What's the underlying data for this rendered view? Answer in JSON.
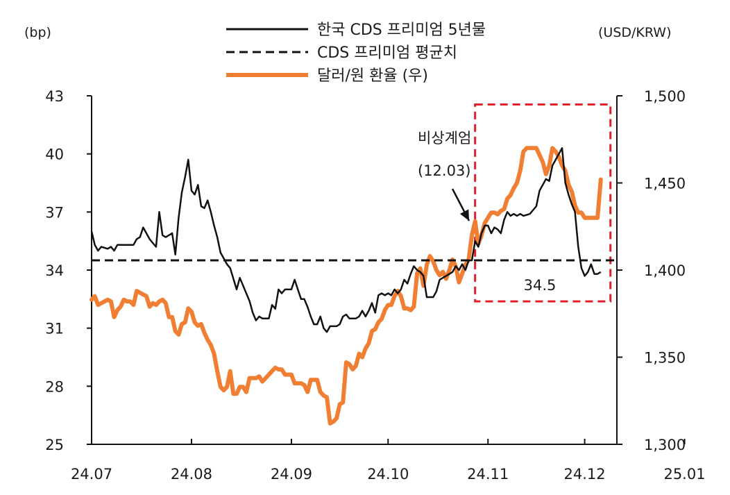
{
  "chart_data": {
    "type": "line",
    "y_left_unit": "(bp)",
    "y_right_unit": "(USD/KRW)",
    "y_left_range": [
      25,
      43
    ],
    "y_left_ticks": [
      "43",
      "40",
      "37",
      "34",
      "31",
      "28",
      "25"
    ],
    "y_right_range": [
      1300,
      1500
    ],
    "y_right_ticks": [
      "1,500",
      "1,450",
      "1,400",
      "1,350",
      "1,300"
    ],
    "x_ticks": [
      "24.07",
      "24.08",
      "24.09",
      "24.10",
      "24.11",
      "24.12",
      "25.01"
    ],
    "grid": false,
    "legend_position": "top-center",
    "series": [
      {
        "name": "한국 CDS 프리미엄 5년물",
        "axis": "left",
        "color": "#111111",
        "style": "solid",
        "points": [
          [
            0,
            36.0
          ],
          [
            1,
            35.3
          ],
          [
            2,
            35.0
          ],
          [
            3,
            35.2
          ],
          [
            5,
            35.1
          ],
          [
            6,
            35.2
          ],
          [
            7,
            35.0
          ],
          [
            8,
            35.3
          ],
          [
            10,
            35.3
          ],
          [
            12,
            35.3
          ],
          [
            13,
            35.3
          ],
          [
            14,
            35.6
          ],
          [
            15,
            35.7
          ],
          [
            16,
            36.2
          ],
          [
            17,
            35.9
          ],
          [
            18,
            35.6
          ],
          [
            19,
            35.4
          ],
          [
            20,
            35.2
          ],
          [
            21,
            37.0
          ],
          [
            22,
            35.8
          ],
          [
            23,
            35.7
          ],
          [
            24,
            35.8
          ],
          [
            25,
            35.9
          ],
          [
            26,
            34.8
          ],
          [
            27,
            36.7
          ],
          [
            28,
            38.0
          ],
          [
            29,
            38.8
          ],
          [
            30,
            39.7
          ],
          [
            31,
            38.1
          ],
          [
            32,
            37.9
          ],
          [
            33,
            38.4
          ],
          [
            34,
            37.3
          ],
          [
            35,
            37.2
          ],
          [
            36,
            37.6
          ],
          [
            37,
            37.0
          ],
          [
            38,
            36.3
          ],
          [
            39,
            35.7
          ],
          [
            40,
            34.9
          ],
          [
            42,
            34.3
          ],
          [
            43,
            34.1
          ],
          [
            45,
            33.0
          ],
          [
            46,
            33.6
          ],
          [
            47,
            33.2
          ],
          [
            48,
            32.8
          ],
          [
            49,
            32.4
          ],
          [
            50,
            31.8
          ],
          [
            51,
            31.4
          ],
          [
            52,
            31.6
          ],
          [
            53,
            31.5
          ],
          [
            55,
            31.5
          ],
          [
            56,
            32.2
          ],
          [
            57,
            32.0
          ],
          [
            58,
            33.0
          ],
          [
            59,
            32.8
          ],
          [
            60,
            33.0
          ],
          [
            62,
            33.0
          ],
          [
            63,
            33.5
          ],
          [
            64,
            33.0
          ],
          [
            65,
            32.5
          ],
          [
            66,
            32.5
          ],
          [
            67,
            32.1
          ],
          [
            68,
            31.6
          ],
          [
            69,
            31.2
          ],
          [
            70,
            31.2
          ],
          [
            71,
            31.6
          ],
          [
            72,
            31.0
          ],
          [
            73,
            30.8
          ],
          [
            74,
            31.1
          ],
          [
            76,
            31.1
          ],
          [
            77,
            31.2
          ],
          [
            78,
            31.6
          ],
          [
            79,
            31.7
          ],
          [
            80,
            31.5
          ],
          [
            82,
            31.5
          ],
          [
            83,
            31.6
          ],
          [
            84,
            31.9
          ],
          [
            85,
            31.6
          ],
          [
            86,
            31.9
          ],
          [
            87,
            32.3
          ],
          [
            88,
            31.8
          ],
          [
            89,
            32.7
          ],
          [
            90,
            32.8
          ],
          [
            91,
            32.7
          ],
          [
            92,
            32.8
          ],
          [
            93,
            32.7
          ],
          [
            94,
            33.0
          ],
          [
            95,
            32.8
          ],
          [
            96,
            33.0
          ],
          [
            97,
            33.5
          ],
          [
            98,
            33.3
          ],
          [
            99,
            33.8
          ],
          [
            100,
            34.2
          ],
          [
            101,
            34.0
          ],
          [
            102,
            33.9
          ],
          [
            103,
            33.7
          ],
          [
            104,
            32.6
          ],
          [
            106,
            32.6
          ],
          [
            107,
            32.9
          ],
          [
            108,
            33.5
          ],
          [
            109,
            33.6
          ],
          [
            110,
            33.7
          ],
          [
            112,
            33.9
          ],
          [
            113,
            34.2
          ],
          [
            114,
            34.0
          ],
          [
            115,
            34.3
          ],
          [
            116,
            34.0
          ],
          [
            117,
            34.5
          ],
          [
            118,
            34.5
          ],
          [
            119,
            35.5
          ],
          [
            120,
            35.2
          ],
          [
            121,
            35.9
          ],
          [
            122,
            36.3
          ],
          [
            123,
            36.3
          ],
          [
            124,
            35.9
          ],
          [
            125,
            36.2
          ],
          [
            126,
            36.1
          ],
          [
            127,
            35.9
          ],
          [
            128,
            36.6
          ],
          [
            129,
            37.0
          ],
          [
            130,
            36.8
          ],
          [
            131,
            36.9
          ],
          [
            132,
            36.8
          ],
          [
            133,
            36.9
          ],
          [
            134,
            36.8
          ],
          [
            136,
            36.9
          ],
          [
            137,
            37.1
          ],
          [
            138,
            37.3
          ],
          [
            139,
            38.1
          ],
          [
            140,
            38.4
          ],
          [
            141,
            38.7
          ],
          [
            142,
            38.6
          ],
          [
            143,
            39.4
          ],
          [
            144,
            39.7
          ],
          [
            145,
            40.0
          ],
          [
            146,
            40.3
          ],
          [
            147,
            38.5
          ],
          [
            148,
            37.9
          ],
          [
            149,
            37.4
          ],
          [
            150,
            37.0
          ],
          [
            151,
            35.2
          ],
          [
            152,
            34.1
          ],
          [
            153,
            33.7
          ],
          [
            154,
            33.9
          ],
          [
            155,
            34.3
          ],
          [
            156,
            33.8
          ],
          [
            157,
            33.8
          ],
          [
            158,
            33.9
          ]
        ]
      },
      {
        "name": "CDS 프리미엄 평균치",
        "axis": "left",
        "color": "#111111",
        "style": "dashed",
        "value": 34.5,
        "label": "34.5"
      },
      {
        "name": "달러/원 환율 (우)",
        "axis": "right",
        "color": "#f07f34",
        "style": "solid",
        "points": [
          [
            0,
            1383
          ],
          [
            1,
            1385
          ],
          [
            2,
            1380
          ],
          [
            3,
            1381
          ],
          [
            4,
            1382
          ],
          [
            5,
            1383
          ],
          [
            6,
            1382
          ],
          [
            7,
            1373
          ],
          [
            8,
            1377
          ],
          [
            9,
            1379
          ],
          [
            10,
            1383
          ],
          [
            11,
            1382
          ],
          [
            12,
            1382
          ],
          [
            13,
            1380
          ],
          [
            14,
            1388
          ],
          [
            15,
            1387
          ],
          [
            16,
            1386
          ],
          [
            17,
            1385
          ],
          [
            18,
            1379
          ],
          [
            19,
            1381
          ],
          [
            20,
            1380
          ],
          [
            21,
            1382
          ],
          [
            22,
            1383
          ],
          [
            23,
            1381
          ],
          [
            24,
            1373
          ],
          [
            25,
            1373
          ],
          [
            26,
            1365
          ],
          [
            27,
            1363
          ],
          [
            28,
            1369
          ],
          [
            29,
            1370
          ],
          [
            30,
            1378
          ],
          [
            31,
            1376
          ],
          [
            32,
            1370
          ],
          [
            33,
            1368
          ],
          [
            34,
            1369
          ],
          [
            35,
            1364
          ],
          [
            36,
            1360
          ],
          [
            37,
            1357
          ],
          [
            38,
            1352
          ],
          [
            39,
            1342
          ],
          [
            40,
            1333
          ],
          [
            41,
            1331
          ],
          [
            42,
            1333
          ],
          [
            43,
            1342
          ],
          [
            44,
            1329
          ],
          [
            45,
            1329
          ],
          [
            46,
            1333
          ],
          [
            47,
            1333
          ],
          [
            48,
            1330
          ],
          [
            49,
            1338
          ],
          [
            50,
            1338
          ],
          [
            51,
            1338
          ],
          [
            52,
            1339
          ],
          [
            53,
            1336
          ],
          [
            54,
            1338
          ],
          [
            55,
            1340
          ],
          [
            56,
            1342
          ],
          [
            57,
            1344
          ],
          [
            58,
            1343
          ],
          [
            59,
            1343
          ],
          [
            60,
            1340
          ],
          [
            61,
            1340
          ],
          [
            62,
            1340
          ],
          [
            63,
            1335
          ],
          [
            64,
            1335
          ],
          [
            65,
            1335
          ],
          [
            66,
            1334
          ],
          [
            67,
            1330
          ],
          [
            68,
            1337
          ],
          [
            69,
            1337
          ],
          [
            70,
            1337
          ],
          [
            71,
            1330
          ],
          [
            72,
            1328
          ],
          [
            73,
            1327
          ],
          [
            74,
            1312
          ],
          [
            75,
            1313
          ],
          [
            76,
            1315
          ],
          [
            77,
            1323
          ],
          [
            78,
            1324
          ],
          [
            79,
            1347
          ],
          [
            80,
            1346
          ],
          [
            81,
            1343
          ],
          [
            82,
            1345
          ],
          [
            83,
            1352
          ],
          [
            84,
            1350
          ],
          [
            85,
            1355
          ],
          [
            86,
            1358
          ],
          [
            87,
            1365
          ],
          [
            88,
            1366
          ],
          [
            89,
            1370
          ],
          [
            90,
            1372
          ],
          [
            91,
            1377
          ],
          [
            92,
            1380
          ],
          [
            93,
            1380
          ],
          [
            94,
            1385
          ],
          [
            95,
            1388
          ],
          [
            96,
            1385
          ],
          [
            97,
            1378
          ],
          [
            98,
            1378
          ],
          [
            99,
            1377
          ],
          [
            100,
            1379
          ],
          [
            101,
            1398
          ],
          [
            102,
            1401
          ],
          [
            103,
            1391
          ],
          [
            104,
            1403
          ],
          [
            105,
            1408
          ],
          [
            106,
            1405
          ],
          [
            107,
            1400
          ],
          [
            108,
            1397
          ],
          [
            109,
            1399
          ],
          [
            110,
            1395
          ],
          [
            111,
            1400
          ],
          [
            112,
            1406
          ],
          [
            113,
            1402
          ],
          [
            114,
            1393
          ],
          [
            115,
            1398
          ],
          [
            116,
            1403
          ],
          [
            117,
            1406
          ],
          [
            118,
            1420
          ],
          [
            119,
            1428
          ],
          [
            120,
            1415
          ],
          [
            121,
            1420
          ],
          [
            122,
            1427
          ],
          [
            123,
            1430
          ],
          [
            124,
            1433
          ],
          [
            125,
            1433
          ],
          [
            126,
            1432
          ],
          [
            127,
            1434
          ],
          [
            128,
            1435
          ],
          [
            129,
            1441
          ],
          [
            130,
            1443
          ],
          [
            131,
            1447
          ],
          [
            132,
            1450
          ],
          [
            133,
            1457
          ],
          [
            134,
            1468
          ],
          [
            135,
            1470
          ],
          [
            138,
            1470
          ],
          [
            139,
            1466
          ],
          [
            140,
            1462
          ],
          [
            141,
            1455
          ],
          [
            142,
            1460
          ],
          [
            143,
            1470
          ],
          [
            144,
            1468
          ],
          [
            145,
            1465
          ],
          [
            146,
            1460
          ],
          [
            147,
            1457
          ],
          [
            148,
            1449
          ],
          [
            149,
            1445
          ],
          [
            150,
            1437
          ],
          [
            151,
            1433
          ],
          [
            152,
            1433
          ],
          [
            153,
            1430
          ],
          [
            157,
            1430
          ],
          [
            158,
            1452
          ]
        ]
      }
    ],
    "annotations": [
      {
        "text_line1": "비상계엄",
        "text_line2": "(12.03)",
        "target_day": 118
      }
    ],
    "highlight_box": {
      "x_from_day": 119,
      "x_to_day": 161,
      "y_from": 1382,
      "y_to": 1495,
      "axis": "right",
      "color": "#e0202a"
    }
  }
}
